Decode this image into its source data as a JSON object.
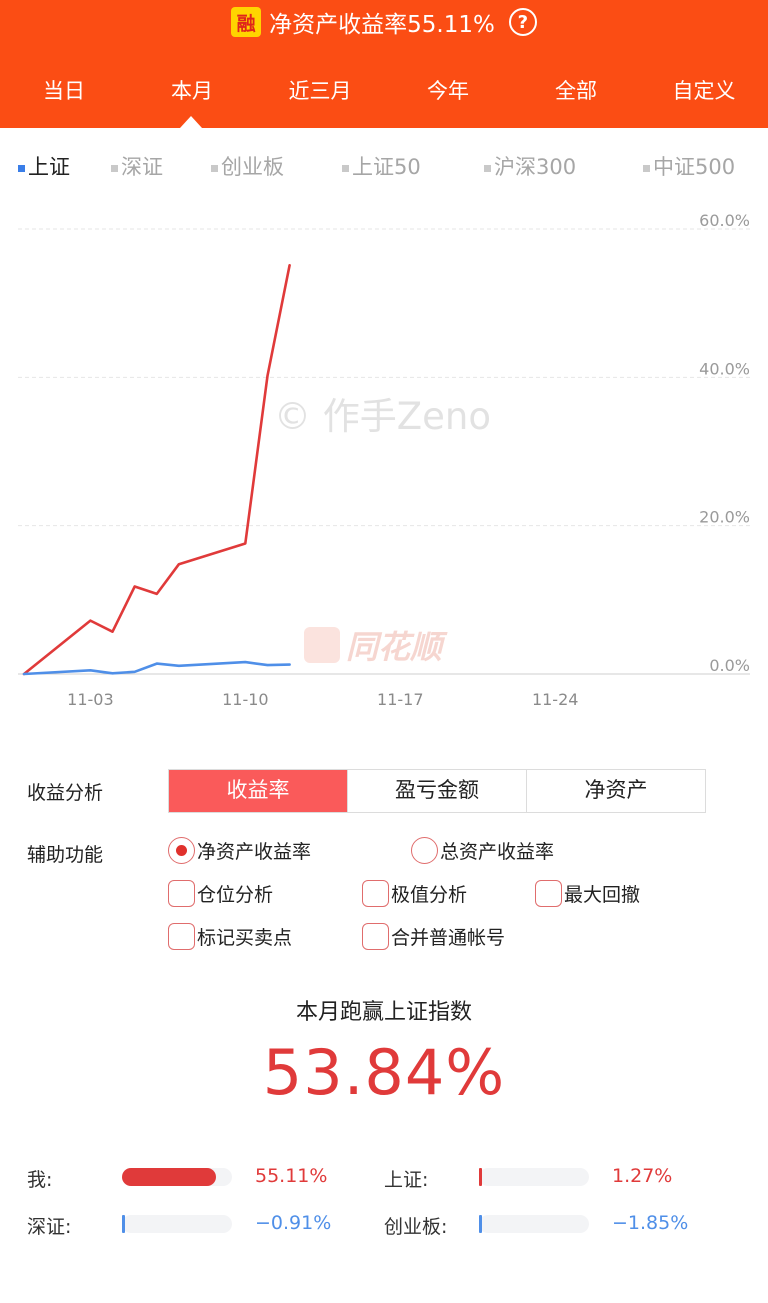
{
  "header": {
    "badge": "融",
    "title": "净资产收益率55.11%",
    "help": "?",
    "period_tabs": [
      "当日",
      "本月",
      "近三月",
      "今年",
      "全部",
      "自定义"
    ],
    "active_period": "本月"
  },
  "index_tabs": {
    "items": [
      "上证",
      "深证",
      "创业板",
      "上证50",
      "沪深300",
      "中证500"
    ],
    "active": "上证"
  },
  "watermark": "© 作手Zeno",
  "logo_watermark": "同花顺",
  "chart_data": {
    "type": "line",
    "x_tick_labels": [
      "11-03",
      "11-10",
      "11-17",
      "11-24"
    ],
    "y_tick_labels": [
      "0.0%",
      "20.0%",
      "40.0%",
      "60.0%"
    ],
    "ylim": [
      0,
      60
    ],
    "xlim": [
      "2023-10-31",
      "2023-11-30"
    ],
    "grid": true,
    "series": [
      {
        "color": "#e03a3a",
        "points": [
          [
            "2023-10-31",
            0
          ],
          [
            "2023-11-03",
            7.2
          ],
          [
            "2023-11-04",
            5.7
          ],
          [
            "2023-11-05",
            11.8
          ],
          [
            "2023-11-06",
            10.8
          ],
          [
            "2023-11-07",
            14.8
          ],
          [
            "2023-11-10",
            17.6
          ],
          [
            "2023-11-11",
            40.2
          ],
          [
            "2023-11-12",
            55.1
          ]
        ]
      },
      {
        "color": "#4f8fe8",
        "points": [
          [
            "2023-10-31",
            0
          ],
          [
            "2023-11-03",
            0.5
          ],
          [
            "2023-11-04",
            0.1
          ],
          [
            "2023-11-05",
            0.3
          ],
          [
            "2023-11-06",
            1.4
          ],
          [
            "2023-11-07",
            1.1
          ],
          [
            "2023-11-10",
            1.6
          ],
          [
            "2023-11-11",
            1.2
          ],
          [
            "2023-11-12",
            1.27
          ]
        ]
      }
    ]
  },
  "analysis": {
    "label": "收益分析",
    "segments": [
      "收益率",
      "盈亏金额",
      "净资产"
    ],
    "active": "收益率"
  },
  "aux": {
    "label": "辅助功能",
    "radio1": "净资产收益率",
    "radio2": "总资产收益率",
    "check1": "仓位分析",
    "check2": "极值分析",
    "check3": "最大回撤",
    "check4": "标记买卖点",
    "check5": "合并普通帐号"
  },
  "summary": {
    "title": "本月跑赢上证指数",
    "value": "53.84%"
  },
  "compare": {
    "me": {
      "label": "我:",
      "value": "55.11%",
      "fill": 0.85,
      "color": "#e03a3a"
    },
    "sh": {
      "label": "上证:",
      "value": "1.27%",
      "fill": 0.02,
      "color": "#e03a3a"
    },
    "sz": {
      "label": "深证:",
      "value": "−0.91%",
      "fill": 0.02,
      "color": "#4f8fe8"
    },
    "cyb": {
      "label": "创业板:",
      "value": "−1.85%",
      "fill": 0.03,
      "color": "#4f8fe8"
    }
  }
}
